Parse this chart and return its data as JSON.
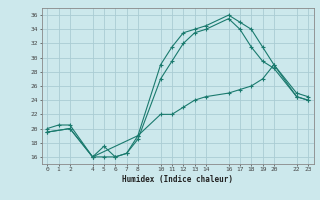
{
  "xlabel": "Humidex (Indice chaleur)",
  "ylabel": "",
  "background_color": "#cce8ec",
  "grid_color": "#aaccd4",
  "line_color": "#1a7a6e",
  "xlim": [
    -0.5,
    23.5
  ],
  "ylim": [
    15,
    37
  ],
  "yticks": [
    16,
    18,
    20,
    22,
    24,
    26,
    28,
    30,
    32,
    34,
    36
  ],
  "xticks": [
    0,
    1,
    2,
    4,
    5,
    6,
    7,
    8,
    10,
    11,
    12,
    13,
    14,
    16,
    17,
    18,
    19,
    20,
    22,
    23
  ],
  "curve1_x": [
    0,
    1,
    2,
    4,
    5,
    6,
    7,
    8,
    10,
    11,
    12,
    13,
    14,
    16,
    17,
    18,
    19,
    20,
    22,
    23
  ],
  "curve1_y": [
    20,
    20.5,
    20.5,
    16,
    17.5,
    16,
    16.5,
    19,
    29,
    31.5,
    33.5,
    34,
    34.5,
    36,
    35,
    34,
    31.5,
    29,
    25,
    24.5
  ],
  "curve2_x": [
    0,
    2,
    4,
    5,
    6,
    7,
    8,
    10,
    11,
    12,
    13,
    14,
    16,
    17,
    18,
    19,
    20,
    22,
    23
  ],
  "curve2_y": [
    19.5,
    20,
    16,
    16,
    16,
    16.5,
    18.5,
    27,
    29.5,
    32,
    33.5,
    34,
    35.5,
    34,
    31.5,
    29.5,
    28.5,
    24.5,
    24
  ],
  "curve3_x": [
    0,
    2,
    4,
    8,
    10,
    11,
    12,
    13,
    14,
    16,
    17,
    18,
    19,
    20,
    22,
    23
  ],
  "curve3_y": [
    19.5,
    20,
    16,
    19,
    22,
    22,
    23,
    24,
    24.5,
    25,
    25.5,
    26,
    27,
    29,
    24.5,
    24
  ]
}
